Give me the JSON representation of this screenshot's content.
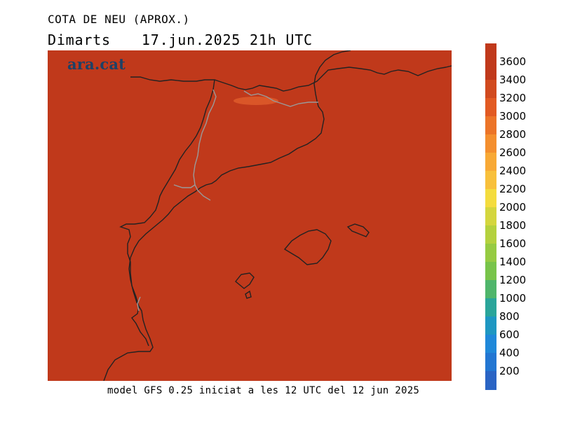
{
  "header": {
    "title": "COTA DE NEU (APROX.)",
    "day": "Dimarts",
    "datetime": "17.jun.2025 21h UTC"
  },
  "brand": "ara.cat",
  "footer": "model GFS 0.25 iniciat a les 12 UTC del 12 jun 2025",
  "colors": {
    "field": "#c0391b",
    "coast": "#222222",
    "border": "#999999",
    "brand": "#1d4166",
    "patch": "#dd5a2a"
  },
  "legend": {
    "labels": [
      "3600",
      "3400",
      "3200",
      "3000",
      "2800",
      "2600",
      "2400",
      "2200",
      "2000",
      "1800",
      "1600",
      "1400",
      "1200",
      "1000",
      "800",
      "600",
      "400",
      "200"
    ],
    "colors": [
      "#c0391b",
      "#d14a1e",
      "#e25a22",
      "#ec7428",
      "#f48f2e",
      "#f8a935",
      "#f8c03b",
      "#f4dc3e",
      "#d4d63e",
      "#b4d13e",
      "#96cb42",
      "#78c44a",
      "#4fb56b",
      "#2aa59a",
      "#1e97c2",
      "#1f88d9",
      "#2276d2",
      "#2a64c4"
    ]
  }
}
